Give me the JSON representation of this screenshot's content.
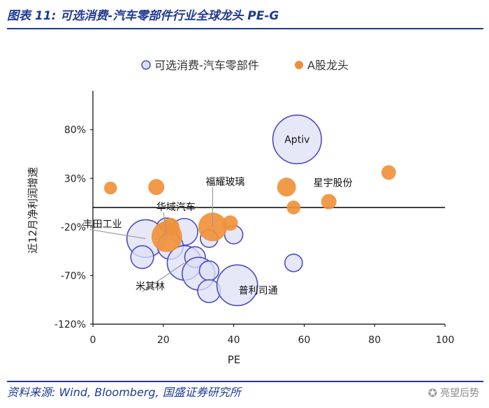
{
  "header": {
    "title": "图表 11: 可选消费-汽车零部件行业全球龙头 PE-G"
  },
  "footer": {
    "source": "资料来源: Wind, Bloomberg, 国盛证券研究所",
    "watermark": "亮望后势",
    "watermark_icon": "wechat-icon"
  },
  "colors": {
    "brand": "#1f3a93",
    "global_fill": "#dde0f5",
    "global_stroke": "#4c4cc0",
    "a_share": "#f0913a"
  },
  "chart_data": {
    "type": "scatter",
    "xlabel": "PE",
    "ylabel": "近12月净利润增速",
    "xlim": [
      0,
      100
    ],
    "ylim": [
      -120,
      120
    ],
    "xticks": [
      "0",
      "20",
      "40",
      "60",
      "80",
      "100"
    ],
    "yticks": [
      "80%",
      "30%",
      "-20%",
      "-70%",
      "-120%"
    ],
    "ytick_values": [
      80,
      30,
      -20,
      -70,
      -120
    ],
    "legend": [
      "可选消费-汽车零部件",
      "A股龙头"
    ],
    "legend_position": "top",
    "series": [
      {
        "name": "可选消费-汽车零部件",
        "points": [
          {
            "x": 58,
            "y": 70,
            "size": 10
          },
          {
            "x": 21,
            "y": -22,
            "size": 2
          },
          {
            "x": 26,
            "y": -25,
            "size": 3
          },
          {
            "x": 33,
            "y": -32,
            "size": 1.3
          },
          {
            "x": 40,
            "y": -28,
            "size": 1.4
          },
          {
            "x": 15,
            "y": -32,
            "size": 6
          },
          {
            "x": 14,
            "y": -51,
            "size": 2.2
          },
          {
            "x": 22,
            "y": -40,
            "size": 2.8
          },
          {
            "x": 26,
            "y": -57,
            "size": 5
          },
          {
            "x": 29,
            "y": -51,
            "size": 1.8
          },
          {
            "x": 30,
            "y": -68,
            "size": 4.5
          },
          {
            "x": 33,
            "y": -65,
            "size": 1.6
          },
          {
            "x": 33,
            "y": -86,
            "size": 2.2
          },
          {
            "x": 41,
            "y": -80,
            "size": 7
          },
          {
            "x": 57,
            "y": -57,
            "size": 1.3
          }
        ]
      },
      {
        "name": "A股龙头",
        "points": [
          {
            "x": 5,
            "y": 20,
            "size": 0.7
          },
          {
            "x": 18,
            "y": 21,
            "size": 1.1
          },
          {
            "x": 22,
            "y": -20,
            "size": 1.4
          },
          {
            "x": 21,
            "y": -30,
            "size": 4
          },
          {
            "x": 34,
            "y": -20,
            "size": 3.5
          },
          {
            "x": 39,
            "y": -16,
            "size": 1
          },
          {
            "x": 55,
            "y": 21,
            "size": 1.5
          },
          {
            "x": 57,
            "y": 0,
            "size": 0.8
          },
          {
            "x": 67,
            "y": 6,
            "size": 1
          },
          {
            "x": 84,
            "y": 36,
            "size": 0.9
          }
        ]
      }
    ],
    "annotations": [
      {
        "text": "Aptiv",
        "x": 58,
        "y": 70,
        "type": "inside"
      },
      {
        "text": "星宇股份",
        "x": 67,
        "y": 6,
        "type": "label"
      },
      {
        "text": "福耀玻璃",
        "x": 34,
        "y": -20,
        "type": "label"
      },
      {
        "text": "华域汽车",
        "x": 21,
        "y": -30,
        "type": "label"
      },
      {
        "text": "丰田工业",
        "x": 15,
        "y": -32,
        "type": "label"
      },
      {
        "text": "米其林",
        "x": 26,
        "y": -57,
        "type": "label"
      },
      {
        "text": "普利司通",
        "x": 41,
        "y": -80,
        "type": "label"
      }
    ]
  }
}
